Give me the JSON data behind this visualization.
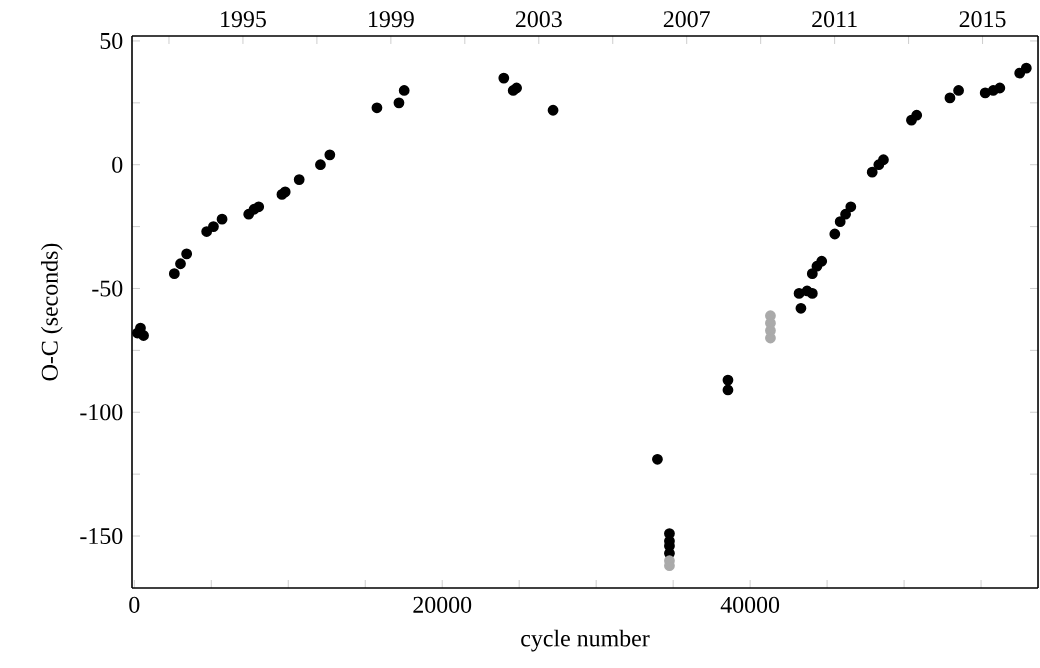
{
  "chart_data": {
    "type": "scatter",
    "xlabel": "cycle number",
    "ylabel": "O-C (seconds)",
    "marker": "circle",
    "xlim": [
      -150,
      58700
    ],
    "ylim": [
      -171,
      52
    ],
    "x2lim": [
      1992.0,
      2016.5
    ],
    "xticks": [
      0,
      {
        "value": 5000,
        "label": null
      },
      {
        "value": 10000,
        "label": null
      },
      {
        "value": 15000,
        "label": null
      },
      20000,
      {
        "value": 25000,
        "label": null
      },
      {
        "value": 30000,
        "label": null
      },
      {
        "value": 35000,
        "label": null
      },
      40000,
      {
        "value": 45000,
        "label": null
      },
      {
        "value": 50000,
        "label": null
      },
      {
        "value": 55000,
        "label": null
      }
    ],
    "yticks": [
      50,
      {
        "value": 25,
        "label": null
      },
      0,
      {
        "value": -25,
        "label": null
      },
      -50,
      {
        "value": -75,
        "label": null
      },
      -100,
      {
        "value": -125,
        "label": null
      },
      -150
    ],
    "x2ticks": [
      {
        "value": 1993,
        "label": null
      },
      1995,
      {
        "value": 1997,
        "label": null
      },
      1999,
      {
        "value": 2001,
        "label": null
      },
      2003,
      {
        "value": 2005,
        "label": null
      },
      2007,
      {
        "value": 2009,
        "label": null
      },
      2011,
      {
        "value": 2013,
        "label": null
      },
      2015
    ],
    "series": [
      {
        "color": "#000000",
        "x": [
          200,
          400,
          600,
          2600,
          3000,
          3400,
          4700,
          5140,
          5700,
          7430,
          7780,
          8080,
          9590,
          9800,
          10710,
          12090,
          12700,
          15760,
          17190,
          17530,
          24000,
          24610,
          24830,
          27200,
          33980,
          34760,
          34760,
          34760,
          34760,
          38560,
          38560,
          43180,
          43300,
          43700,
          44040,
          44040,
          44340,
          44650,
          45500,
          45850,
          46200,
          46540,
          47930,
          48360,
          48660,
          50480,
          50820,
          52980,
          53540,
          55270,
          55790,
          56220,
          57510,
          57940
        ],
        "values": [
          -68,
          -66,
          -69,
          -44,
          -40,
          -36,
          -27,
          -25,
          -22,
          -20,
          -18,
          -17,
          -12,
          -11,
          -6,
          0,
          4,
          23,
          25,
          30,
          35,
          30,
          31,
          22,
          -119,
          -149,
          -152,
          -154,
          -157,
          -87,
          -91,
          -52,
          -58,
          -51,
          -52,
          -44,
          -41,
          -39,
          -28,
          -23,
          -20,
          -17,
          -3,
          0,
          2,
          18,
          20,
          27,
          30,
          29,
          30,
          31,
          37,
          39
        ]
      },
      {
        "color": "#aaaaaa",
        "x": [
          34760,
          34760,
          41320,
          41320,
          41320,
          41320
        ],
        "values": [
          -160,
          -162,
          -61,
          -64,
          -67,
          -70
        ]
      }
    ]
  }
}
